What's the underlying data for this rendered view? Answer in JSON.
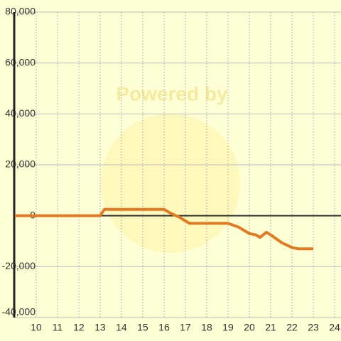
{
  "chart_data": {
    "type": "line",
    "watermark": "Powered by",
    "x": [
      9,
      13,
      13.2,
      16,
      16.3,
      16.7,
      17.2,
      19,
      19.5,
      20,
      20.3,
      20.5,
      20.8,
      21,
      21.5,
      22,
      22.3,
      23
    ],
    "series": [
      {
        "color": "#e07b24",
        "values": [
          0,
          0,
          2500,
          2500,
          1000,
          -500,
          -3000,
          -3000,
          -4500,
          -7000,
          -7500,
          -8500,
          -6500,
          -7500,
          -10500,
          -12500,
          -13000,
          -13000
        ]
      }
    ],
    "xlim": [
      8.97,
      24.3
    ],
    "xticks": [
      10,
      11,
      12,
      13,
      14,
      15,
      16,
      17,
      18,
      19,
      20,
      21,
      22,
      23,
      24
    ],
    "ylim": [
      -40000,
      80000
    ],
    "yticks": [
      {
        "value": -40000,
        "label": "-40,000"
      },
      {
        "value": -20000,
        "label": "-20,000"
      },
      0,
      {
        "value": 20000,
        "label": "20,000"
      },
      {
        "value": 40000,
        "label": "40,000"
      },
      {
        "value": 60000,
        "label": "60,000"
      },
      {
        "value": 80000,
        "label": "80,000"
      }
    ],
    "grid": true
  }
}
